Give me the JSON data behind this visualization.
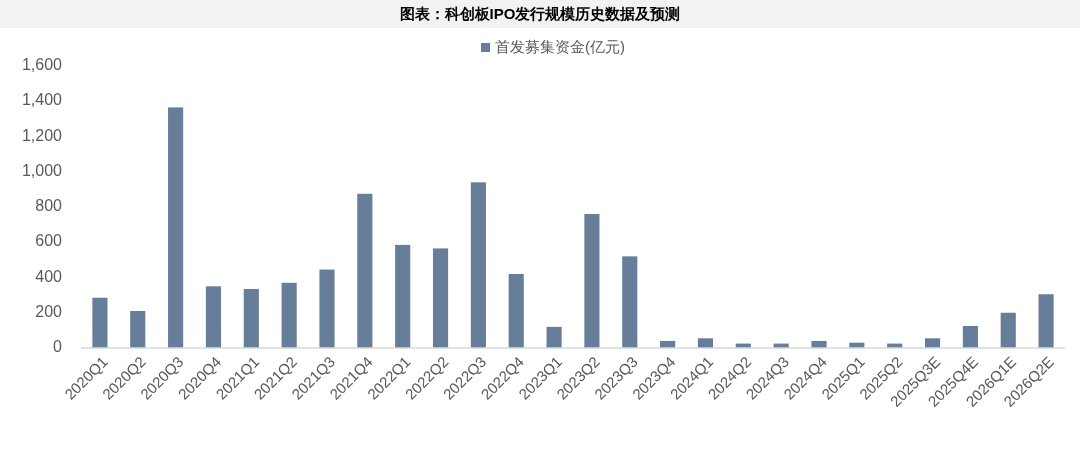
{
  "chart_data": {
    "type": "bar",
    "title": "图表：科创板IPO发行规模历史数据及预测",
    "categories": [
      "2020Q1",
      "2020Q2",
      "2020Q3",
      "2020Q4",
      "2021Q1",
      "2021Q2",
      "2021Q3",
      "2021Q4",
      "2022Q1",
      "2022Q2",
      "2022Q3",
      "2022Q4",
      "2023Q1",
      "2023Q2",
      "2023Q3",
      "2023Q4",
      "2024Q1",
      "2024Q2",
      "2024Q3",
      "2024Q4",
      "2025Q1",
      "2025Q2",
      "2025Q3E",
      "2025Q4E",
      "2026Q1E",
      "2026Q2E"
    ],
    "series": [
      {
        "name": "首发募集资金(亿元)",
        "color": "#667e99",
        "values": [
          285,
          210,
          1365,
          350,
          335,
          370,
          445,
          875,
          585,
          565,
          940,
          420,
          120,
          760,
          520,
          40,
          55,
          25,
          25,
          40,
          30,
          25,
          55,
          125,
          200,
          305
        ]
      }
    ],
    "ylim": [
      0,
      1600
    ],
    "yticks": [
      0,
      200,
      400,
      600,
      800,
      {
        "value": 1000,
        "label": "1,000"
      },
      {
        "value": 1200,
        "label": "1,200"
      },
      {
        "value": 1400,
        "label": "1,400"
      },
      {
        "value": 1600,
        "label": "1,600"
      }
    ],
    "legend": "top"
  }
}
